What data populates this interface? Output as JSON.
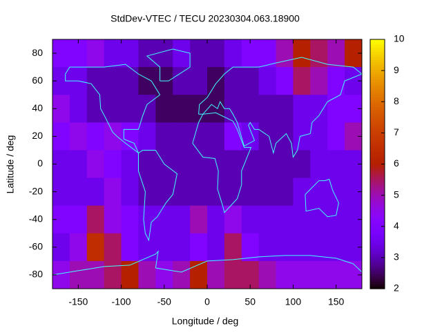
{
  "chart_data": {
    "type": "heatmap",
    "title": "StdDev-VTEC / TECU 20230304.063.18900",
    "x_label": "Longitude / deg",
    "y_label": "Latitude / deg",
    "xlim": [
      -180,
      180
    ],
    "ylim": [
      -90,
      90
    ],
    "xticks": [
      -150,
      -100,
      -50,
      0,
      50,
      100,
      150
    ],
    "yticks": [
      -80,
      -60,
      -40,
      -20,
      0,
      20,
      40,
      60,
      80
    ],
    "zlim": [
      2,
      10
    ],
    "zticks": [
      2,
      3,
      4,
      5,
      6,
      7,
      8,
      9,
      10
    ],
    "colormap": "gnuplot",
    "coastline_color": "#40ffff",
    "z": [
      [
        4,
        4,
        4.5,
        3.5,
        3.5,
        3,
        3,
        3.5,
        3,
        3,
        3.5,
        4,
        4,
        5,
        6,
        5.5,
        5,
        6
      ],
      [
        3.5,
        3.5,
        3,
        3,
        3,
        2.5,
        2.5,
        3,
        3,
        2.5,
        3,
        3,
        3.5,
        4,
        5.5,
        5,
        4,
        3.5
      ],
      [
        4.5,
        3.5,
        3,
        3,
        3,
        3,
        2.5,
        2.5,
        2.5,
        2.5,
        3,
        3,
        3,
        3,
        3.5,
        3.5,
        4,
        4
      ],
      [
        4,
        4.5,
        4,
        4.5,
        4,
        3.5,
        3,
        3,
        3,
        3,
        4,
        3.5,
        3,
        3,
        3.5,
        3.5,
        4,
        5
      ],
      [
        3.5,
        3.5,
        4.5,
        4,
        3.5,
        3,
        3,
        3,
        3,
        3,
        3,
        3,
        3,
        3,
        3,
        3.5,
        3.5,
        3.5
      ],
      [
        3.5,
        3.5,
        3.5,
        4.5,
        3.5,
        3,
        3,
        3,
        3,
        3,
        3,
        3,
        3,
        3,
        3.5,
        3.5,
        3.5,
        3.5
      ],
      [
        4,
        4,
        5.5,
        4.5,
        4,
        3.5,
        3.5,
        3.5,
        5,
        3.5,
        4.5,
        3.5,
        3.5,
        3.5,
        3.5,
        3.5,
        3.5,
        3.5
      ],
      [
        3.5,
        4.5,
        6.5,
        5.5,
        4,
        3.5,
        3.5,
        3.5,
        4,
        3.5,
        5.5,
        4,
        3.5,
        3.5,
        3.5,
        3.5,
        3.5,
        3.5
      ],
      [
        4.5,
        5,
        5,
        5.5,
        6,
        5,
        4.5,
        5,
        6,
        5,
        5.5,
        5.5,
        5,
        4.5,
        4.5,
        4.5,
        4.5,
        4.5
      ]
    ]
  }
}
